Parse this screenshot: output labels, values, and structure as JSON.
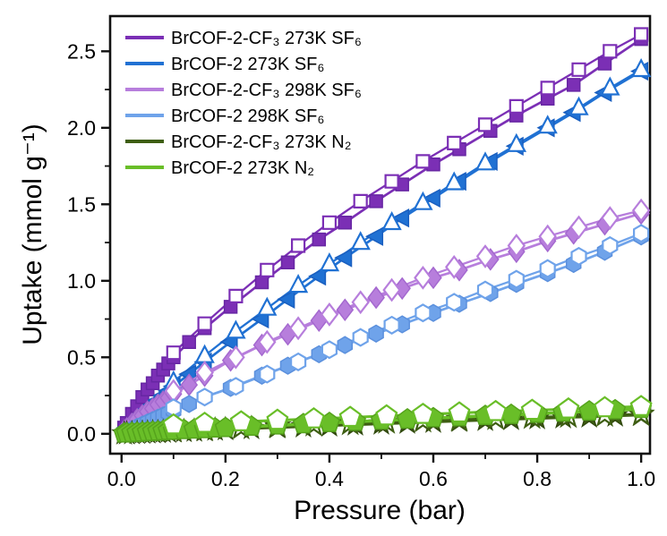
{
  "figure": {
    "background": "#ffffff",
    "frame_color": "#111111"
  },
  "chart_data": {
    "type": "line",
    "title": "",
    "xlabel": "Pressure (bar)",
    "ylabel": "Uptake (mmol g⁻¹)",
    "xlim": [
      -0.022,
      1.017
    ],
    "ylim": [
      -0.13,
      2.73
    ],
    "x_major_ticks": [
      0.0,
      0.2,
      0.4,
      0.6,
      0.8,
      1.0
    ],
    "x_tick_labels": [
      "0.0",
      "0.2",
      "0.4",
      "0.6",
      "0.8",
      "1.0"
    ],
    "x_minor_ticks": [
      0.1,
      0.3,
      0.5,
      0.7,
      0.9
    ],
    "y_major_ticks": [
      0.0,
      0.5,
      1.0,
      1.5,
      2.0,
      2.5
    ],
    "y_tick_labels": [
      "0.0",
      "0.5",
      "1.0",
      "1.5",
      "2.0",
      "2.5"
    ],
    "y_minor_ticks": [
      0.25,
      0.75,
      1.25,
      1.75,
      2.25
    ],
    "grid": false,
    "legend_position": "top-left",
    "series": [
      {
        "name": "BrCOF-2-CF₃  273K SF₆",
        "color": "#7b2fb5",
        "edge": "#6726a3",
        "marker": "square",
        "marker_size": 14,
        "line_width": 2.7,
        "adsorption": {
          "pressure": [
            0.005,
            0.01,
            0.02,
            0.03,
            0.04,
            0.05,
            0.06,
            0.07,
            0.08,
            0.09,
            0.1,
            0.13,
            0.16,
            0.21,
            0.27,
            0.32,
            0.38,
            0.43,
            0.49,
            0.54,
            0.6,
            0.65,
            0.71,
            0.76,
            0.82,
            0.87,
            0.93,
            1.0
          ],
          "uptake": [
            0.04,
            0.07,
            0.13,
            0.18,
            0.24,
            0.29,
            0.33,
            0.38,
            0.42,
            0.46,
            0.5,
            0.6,
            0.69,
            0.83,
            0.99,
            1.12,
            1.27,
            1.38,
            1.52,
            1.63,
            1.76,
            1.86,
            1.98,
            2.08,
            2.19,
            2.28,
            2.42,
            2.58
          ]
        },
        "desorption": {
          "pressure": [
            1.0,
            0.94,
            0.88,
            0.82,
            0.76,
            0.7,
            0.64,
            0.58,
            0.52,
            0.46,
            0.4,
            0.34,
            0.28,
            0.22,
            0.16,
            0.1
          ],
          "uptake": [
            2.61,
            2.5,
            2.38,
            2.26,
            2.14,
            2.02,
            1.9,
            1.78,
            1.65,
            1.52,
            1.38,
            1.23,
            1.07,
            0.9,
            0.72,
            0.53
          ]
        }
      },
      {
        "name": "BrCOF-2  273K SF₆",
        "color": "#2071d3",
        "edge": "#1a5fc0",
        "marker": "triangle-left",
        "marker_des": "triangle-up",
        "marker_size": 17,
        "line_width": 2.7,
        "adsorption": {
          "pressure": [
            0.005,
            0.01,
            0.02,
            0.03,
            0.04,
            0.05,
            0.06,
            0.07,
            0.08,
            0.09,
            0.1,
            0.13,
            0.16,
            0.21,
            0.27,
            0.32,
            0.38,
            0.43,
            0.49,
            0.54,
            0.6,
            0.65,
            0.71,
            0.76,
            0.82,
            0.87,
            0.93,
            1.0
          ],
          "uptake": [
            0.02,
            0.04,
            0.07,
            0.1,
            0.13,
            0.16,
            0.19,
            0.22,
            0.25,
            0.28,
            0.31,
            0.39,
            0.47,
            0.6,
            0.75,
            0.88,
            1.03,
            1.15,
            1.29,
            1.41,
            1.54,
            1.65,
            1.78,
            1.88,
            2.0,
            2.1,
            2.23,
            2.37
          ]
        },
        "desorption": {
          "pressure": [
            1.0,
            0.94,
            0.88,
            0.82,
            0.76,
            0.7,
            0.64,
            0.58,
            0.52,
            0.46,
            0.4,
            0.34,
            0.28,
            0.22,
            0.16,
            0.1
          ],
          "uptake": [
            2.38,
            2.26,
            2.13,
            2.01,
            1.89,
            1.77,
            1.64,
            1.51,
            1.38,
            1.25,
            1.11,
            0.97,
            0.82,
            0.67,
            0.51,
            0.34
          ]
        }
      },
      {
        "name": "BrCOF-2-CF₃  298K SF₆",
        "color": "#b77edc",
        "edge": "#a468cf",
        "marker": "diamond",
        "marker_size": 17,
        "line_width": 2.7,
        "adsorption": {
          "pressure": [
            0.005,
            0.01,
            0.02,
            0.03,
            0.04,
            0.05,
            0.06,
            0.07,
            0.08,
            0.09,
            0.1,
            0.13,
            0.16,
            0.21,
            0.27,
            0.32,
            0.38,
            0.43,
            0.49,
            0.54,
            0.6,
            0.65,
            0.71,
            0.76,
            0.82,
            0.87,
            0.93,
            1.0
          ],
          "uptake": [
            0.02,
            0.035,
            0.065,
            0.095,
            0.12,
            0.145,
            0.165,
            0.19,
            0.21,
            0.235,
            0.26,
            0.32,
            0.38,
            0.48,
            0.58,
            0.65,
            0.74,
            0.81,
            0.89,
            0.95,
            1.02,
            1.07,
            1.14,
            1.19,
            1.26,
            1.31,
            1.37,
            1.44
          ]
        },
        "desorption": {
          "pressure": [
            1.0,
            0.94,
            0.88,
            0.82,
            0.76,
            0.7,
            0.64,
            0.58,
            0.52,
            0.46,
            0.4,
            0.34,
            0.28,
            0.22,
            0.16,
            0.1
          ],
          "uptake": [
            1.46,
            1.41,
            1.35,
            1.29,
            1.23,
            1.16,
            1.09,
            1.02,
            0.94,
            0.86,
            0.78,
            0.69,
            0.6,
            0.5,
            0.4,
            0.28
          ]
        }
      },
      {
        "name": "BrCOF-2  298K SF₆",
        "color": "#6fa3ea",
        "edge": "#5b90dd",
        "marker": "hexagon",
        "marker_size": 16,
        "line_width": 2.7,
        "adsorption": {
          "pressure": [
            0.005,
            0.01,
            0.02,
            0.03,
            0.04,
            0.05,
            0.06,
            0.07,
            0.08,
            0.09,
            0.1,
            0.13,
            0.16,
            0.21,
            0.27,
            0.32,
            0.38,
            0.43,
            0.49,
            0.54,
            0.6,
            0.65,
            0.71,
            0.76,
            0.82,
            0.87,
            0.93,
            1.0
          ],
          "uptake": [
            0.01,
            0.015,
            0.03,
            0.045,
            0.06,
            0.075,
            0.09,
            0.105,
            0.12,
            0.135,
            0.15,
            0.195,
            0.24,
            0.3,
            0.38,
            0.445,
            0.52,
            0.58,
            0.655,
            0.715,
            0.79,
            0.85,
            0.92,
            0.98,
            1.05,
            1.11,
            1.19,
            1.29
          ]
        },
        "desorption": {
          "pressure": [
            1.0,
            0.94,
            0.88,
            0.82,
            0.76,
            0.7,
            0.64,
            0.58,
            0.52,
            0.46,
            0.4,
            0.34,
            0.28,
            0.22,
            0.16,
            0.1
          ],
          "uptake": [
            1.31,
            1.23,
            1.16,
            1.08,
            1.01,
            0.94,
            0.86,
            0.79,
            0.71,
            0.63,
            0.55,
            0.47,
            0.39,
            0.31,
            0.24,
            0.17
          ]
        }
      },
      {
        "name": "BrCOF-2-CF₃  273K N₂",
        "color": "#3e5e12",
        "edge": "#31490e",
        "marker": "star",
        "marker_size": 20,
        "line_width": 3.2,
        "adsorption": {
          "pressure": [
            0.005,
            0.01,
            0.02,
            0.03,
            0.04,
            0.05,
            0.06,
            0.07,
            0.08,
            0.09,
            0.1,
            0.12,
            0.14,
            0.16,
            0.18,
            0.2,
            0.25,
            0.3,
            0.35,
            0.4,
            0.45,
            0.5,
            0.55,
            0.6,
            0.65,
            0.7,
            0.75,
            0.8,
            0.85,
            0.9,
            0.95,
            1.0
          ],
          "uptake": [
            0.001,
            0.002,
            0.003,
            0.005,
            0.006,
            0.008,
            0.009,
            0.01,
            0.012,
            0.013,
            0.015,
            0.017,
            0.02,
            0.023,
            0.026,
            0.029,
            0.036,
            0.042,
            0.048,
            0.054,
            0.06,
            0.066,
            0.072,
            0.078,
            0.084,
            0.09,
            0.096,
            0.101,
            0.107,
            0.112,
            0.118,
            0.123
          ]
        },
        "desorption": {
          "pressure": [
            1.0,
            0.93,
            0.86,
            0.79,
            0.72,
            0.65,
            0.58,
            0.51,
            0.44,
            0.37,
            0.3,
            0.23,
            0.16,
            0.1
          ],
          "uptake": [
            0.128,
            0.122,
            0.115,
            0.108,
            0.101,
            0.093,
            0.085,
            0.077,
            0.068,
            0.059,
            0.05,
            0.04,
            0.03,
            0.021
          ]
        }
      },
      {
        "name": "BrCOF-2 273K N₂",
        "color": "#69be28",
        "edge": "#55a31c",
        "marker": "pentagon",
        "marker_size": 19,
        "line_width": 3.6,
        "adsorption": {
          "pressure": [
            0.005,
            0.01,
            0.02,
            0.03,
            0.04,
            0.05,
            0.06,
            0.07,
            0.08,
            0.09,
            0.1,
            0.12,
            0.14,
            0.16,
            0.18,
            0.2,
            0.25,
            0.3,
            0.35,
            0.4,
            0.45,
            0.5,
            0.55,
            0.6,
            0.65,
            0.7,
            0.75,
            0.8,
            0.85,
            0.9,
            0.95,
            1.0
          ],
          "uptake": [
            0.002,
            0.003,
            0.005,
            0.007,
            0.009,
            0.011,
            0.013,
            0.015,
            0.017,
            0.019,
            0.021,
            0.025,
            0.028,
            0.031,
            0.035,
            0.038,
            0.047,
            0.055,
            0.063,
            0.071,
            0.079,
            0.087,
            0.094,
            0.102,
            0.109,
            0.117,
            0.124,
            0.131,
            0.139,
            0.146,
            0.154,
            0.163
          ]
        },
        "desorption": {
          "pressure": [
            1.0,
            0.93,
            0.86,
            0.79,
            0.72,
            0.65,
            0.58,
            0.51,
            0.44,
            0.37,
            0.3,
            0.23,
            0.16,
            0.1
          ],
          "uptake": [
            0.178,
            0.17,
            0.162,
            0.153,
            0.145,
            0.136,
            0.127,
            0.117,
            0.107,
            0.097,
            0.088,
            0.078,
            0.068,
            0.058
          ]
        }
      }
    ]
  }
}
